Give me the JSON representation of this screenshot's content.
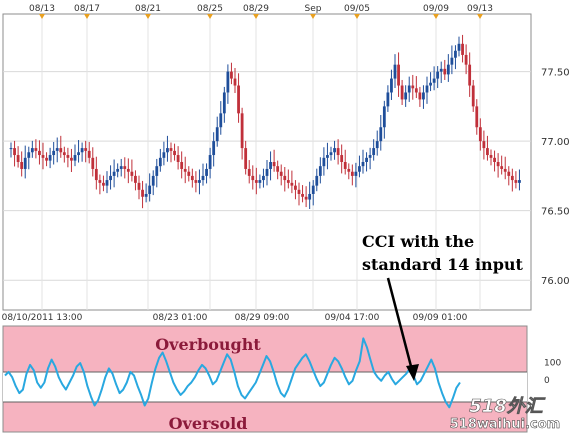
{
  "chart_data": [
    {
      "type": "candlestick",
      "title": "",
      "xlabel": "",
      "ylabel": "",
      "ylim": [
        75.8,
        77.9
      ],
      "yticks": [
        76.0,
        76.5,
        77.0,
        77.5
      ],
      "ytick_labels": [
        "76.00",
        "76.50",
        "77.00",
        "77.50"
      ],
      "top_date_labels": [
        "08/13",
        "08/17",
        "08/21",
        "08/25",
        "08/29",
        "Sep",
        "09/05",
        "09/09",
        "09/13"
      ],
      "bottom_datetime_labels": [
        "08/10/2011 13:00",
        "08/23 01:00",
        "08/29 09:00",
        "09/04 17:00",
        "09/09 01:00"
      ],
      "grid": true,
      "candle_colors": {
        "up": "#1f4e9a",
        "down": "#c0303a"
      },
      "series": [
        {
          "name": "price",
          "close": [
            76.95,
            76.9,
            76.85,
            76.8,
            76.88,
            76.92,
            76.95,
            76.93,
            76.9,
            76.88,
            76.86,
            76.9,
            76.93,
            76.95,
            76.92,
            76.9,
            76.88,
            76.86,
            76.9,
            76.92,
            76.95,
            76.93,
            76.88,
            76.8,
            76.72,
            76.7,
            76.68,
            76.72,
            76.75,
            76.78,
            76.8,
            76.82,
            76.8,
            76.78,
            76.75,
            76.7,
            76.65,
            76.6,
            76.62,
            76.68,
            76.75,
            76.82,
            76.88,
            76.92,
            76.95,
            76.93,
            76.9,
            76.85,
            76.8,
            76.78,
            76.75,
            76.72,
            76.7,
            76.72,
            76.75,
            76.8,
            76.9,
            77.0,
            77.1,
            77.2,
            77.35,
            77.5,
            77.45,
            77.4,
            77.2,
            76.95,
            76.8,
            76.75,
            76.72,
            76.7,
            76.72,
            76.75,
            76.8,
            76.85,
            76.82,
            76.78,
            76.75,
            76.72,
            76.7,
            76.68,
            76.65,
            76.62,
            76.6,
            76.58,
            76.62,
            76.68,
            76.75,
            76.82,
            76.88,
            76.9,
            76.92,
            76.95,
            76.9,
            76.85,
            76.8,
            76.78,
            76.75,
            76.78,
            76.82,
            76.85,
            76.88,
            76.9,
            76.95,
            77.0,
            77.1,
            77.25,
            77.35,
            77.45,
            77.55,
            77.4,
            77.3,
            77.35,
            77.4,
            77.38,
            77.35,
            77.3,
            77.35,
            77.4,
            77.42,
            77.45,
            77.5,
            77.52,
            77.48,
            77.55,
            77.6,
            77.65,
            77.7,
            77.62,
            77.55,
            77.4,
            77.25,
            77.1,
            77.0,
            76.95,
            76.9,
            76.88,
            76.85,
            76.82,
            76.8,
            76.78,
            76.75,
            76.72,
            76.7,
            76.72
          ]
        }
      ]
    },
    {
      "type": "line",
      "title": "",
      "xlabel": "",
      "ylabel": "",
      "ylim": [
        -300,
        300
      ],
      "yticks": [
        100,
        0,
        -100
      ],
      "ytick_labels": [
        "100",
        "0",
        ""
      ],
      "zones": {
        "overbought_label": "Overbought",
        "oversold_label": "Oversold",
        "upper": 100,
        "lower": -100
      },
      "series": [
        {
          "name": "",
          "values": [
            20,
            40,
            10,
            -40,
            -80,
            -60,
            30,
            80,
            50,
            -20,
            -50,
            -20,
            60,
            110,
            70,
            10,
            -30,
            -60,
            -20,
            20,
            70,
            90,
            40,
            -40,
            -100,
            -150,
            -120,
            -60,
            10,
            60,
            30,
            -30,
            -80,
            -60,
            -20,
            40,
            20,
            -40,
            -90,
            -150,
            -110,
            -20,
            60,
            120,
            150,
            100,
            40,
            -20,
            -60,
            -90,
            -70,
            -40,
            -20,
            10,
            50,
            80,
            60,
            20,
            -30,
            -10,
            40,
            90,
            140,
            110,
            40,
            -40,
            -90,
            -110,
            -80,
            -50,
            -20,
            30,
            80,
            130,
            100,
            40,
            -30,
            -80,
            -100,
            -60,
            0,
            60,
            90,
            120,
            140,
            100,
            50,
            0,
            -40,
            -20,
            30,
            80,
            120,
            100,
            60,
            10,
            -30,
            -10,
            50,
            100,
            230,
            180,
            110,
            40,
            10,
            -10,
            20,
            40,
            0,
            -30,
            -10,
            10,
            30,
            60,
            20,
            -30,
            -10,
            30,
            70,
            110,
            60,
            -20,
            -80,
            -130,
            -160,
            -110,
            -50,
            -20
          ]
        }
      ]
    }
  ],
  "annotations": {
    "callout_line1": "CCI with the",
    "callout_line2": "standard 14 input",
    "watermark_text": "518waihui.com",
    "watermark_logo": "518外汇"
  }
}
